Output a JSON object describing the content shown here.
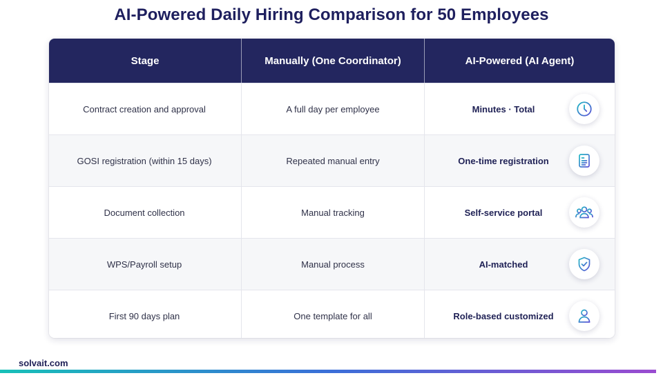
{
  "title": "AI-Powered Daily Hiring Comparison for 50 Employees",
  "table": {
    "headers": [
      "Stage",
      "Manually (One Coordinator)",
      "AI-Powered (AI Agent)"
    ],
    "rows": [
      {
        "stage": "Contract creation and approval",
        "manual": "A full day per employee",
        "ai": "Minutes · Total",
        "icon": "clock-icon"
      },
      {
        "stage": "GOSI registration (within 15 days)",
        "manual": "Repeated manual entry",
        "ai": "One-time registration",
        "icon": "document-icon"
      },
      {
        "stage": "Document collection",
        "manual": "Manual tracking",
        "ai": "Self-service portal",
        "icon": "users-icon"
      },
      {
        "stage": "WPS/Payroll setup",
        "manual": "Manual process",
        "ai": "AI-matched",
        "icon": "shield-check-icon"
      },
      {
        "stage": "First 90 days plan",
        "manual": "One template for all",
        "ai": "Role-based customized",
        "icon": "user-icon"
      }
    ]
  },
  "footer": {
    "brand": "solvait.com"
  },
  "colors": {
    "header_bg": "#23265f",
    "title": "#1e1f5e",
    "icon_gradient_start": "#1fb8c4",
    "icon_gradient_end": "#5a4fd6"
  }
}
